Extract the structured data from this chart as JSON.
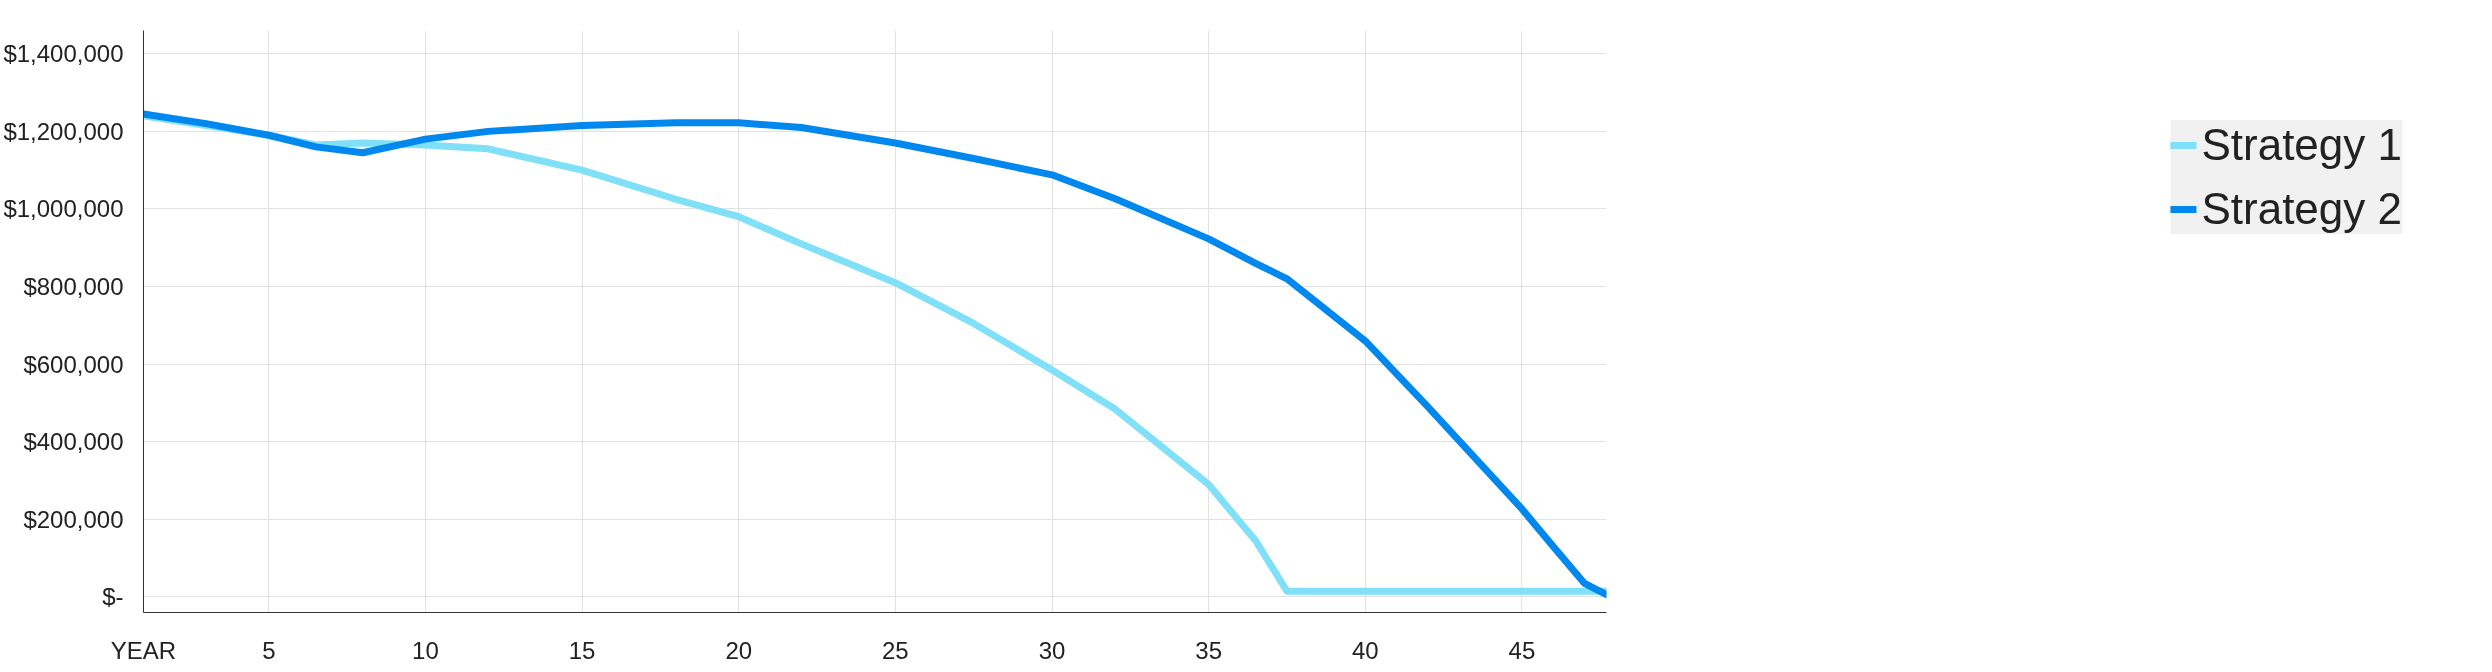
{
  "chart_data": {
    "type": "line",
    "x": [
      1,
      3,
      5,
      6.5,
      8,
      10,
      12,
      15,
      18,
      20,
      22,
      25,
      27.5,
      30,
      32,
      35,
      36.5,
      37.5,
      40,
      42,
      44,
      45,
      46,
      47,
      47.7
    ],
    "series": [
      {
        "name": "Strategy 1",
        "color": "#80e0f8",
        "values": [
          1240000,
          1215000,
          1190000,
          1165000,
          1170000,
          1165000,
          1155000,
          1100000,
          1025000,
          980000,
          910000,
          810000,
          705000,
          585000,
          485000,
          290000,
          145000,
          15000,
          15000,
          15000,
          15000,
          15000,
          15000,
          15000,
          15000
        ]
      },
      {
        "name": "Strategy 2",
        "color": "#0088ee",
        "values": [
          1245000,
          1220000,
          1190000,
          1160000,
          1145000,
          1180000,
          1200000,
          1215000,
          1222000,
          1222000,
          1210000,
          1170000,
          1130000,
          1088000,
          1027000,
          923000,
          860000,
          820000,
          660000,
          490000,
          315000,
          227000,
          130000,
          35000,
          6000
        ]
      }
    ],
    "xlim": [
      1,
      47.7
    ],
    "xticks": [
      {
        "value": 1,
        "label": "YEAR"
      },
      5,
      10,
      15,
      20,
      25,
      30,
      35,
      40,
      45
    ],
    "ylim": [
      -40000,
      1460000
    ],
    "yticks": [
      {
        "value": 0,
        "label": "$-"
      },
      {
        "value": 200000,
        "label": "$200,000"
      },
      {
        "value": 400000,
        "label": "$400,000"
      },
      {
        "value": 600000,
        "label": "$600,000"
      },
      {
        "value": 800000,
        "label": "$800,000"
      },
      {
        "value": 1000000,
        "label": "$1,000,000"
      },
      {
        "value": 1200000,
        "label": "$1,200,000"
      },
      {
        "value": 1400000,
        "label": "$1,400,000"
      }
    ],
    "grid": true,
    "legend": "right"
  }
}
